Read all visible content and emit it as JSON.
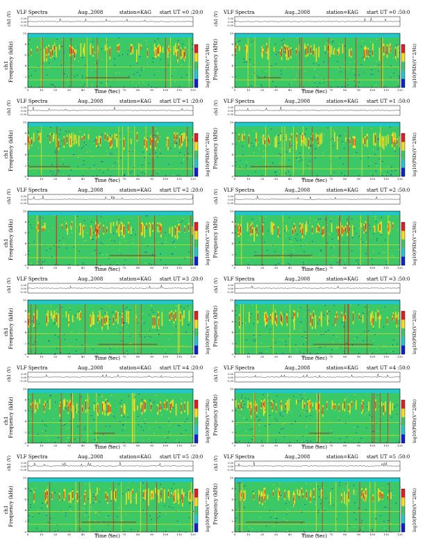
{
  "page_title_left": "VLF Spectra",
  "chart_data": [
    {
      "type": "heatmap",
      "label": "VLF Spectra",
      "date": "Aug.,2008",
      "station": "station=KAG",
      "start": "start UT =0 :20:0",
      "channel_label": "ch1 (V)",
      "ylabel": "ch1\nFrequency (kHz)",
      "xlabel": "Time (sec)",
      "colorbar_label": "log10(PSD)(V^2/Hz)",
      "x_ticks": [
        0,
        10,
        20,
        30,
        40,
        50,
        60,
        70,
        80,
        90,
        100,
        110,
        120
      ],
      "y_ticks": [
        0,
        2,
        4,
        6,
        8,
        10
      ],
      "xlim": [
        0,
        120
      ],
      "ylim": [
        0,
        10
      ]
    },
    {
      "type": "heatmap",
      "label": "VLF Spectra",
      "date": "Aug.,2008",
      "station": "station=KAG",
      "start": "start UT =0 :50:0",
      "channel_label": "ch1 (V)",
      "ylabel": "Frequency (kHz)",
      "xlabel": "Time (sec)",
      "colorbar_label": "log10(PSD)(V^2/Hz)",
      "x_ticks": [
        0,
        10,
        20,
        30,
        40,
        50,
        60,
        70,
        80,
        90,
        100,
        110,
        120
      ],
      "y_ticks": [
        0,
        2,
        4,
        6,
        8,
        10
      ],
      "xlim": [
        0,
        120
      ],
      "ylim": [
        0,
        10
      ]
    },
    {
      "type": "heatmap",
      "label": "VLF Spectra",
      "date": "Aug.,2008",
      "station": "station=KAG",
      "start": "start UT =1 :20:0",
      "channel_label": "ch1 (V)",
      "ylabel": "ch1\nFrequency (kHz)",
      "xlabel": "Time (sec)",
      "colorbar_label": "log10(PSD)(V^2/Hz)",
      "x_ticks": [
        0,
        10,
        20,
        30,
        40,
        50,
        60,
        70,
        80,
        90,
        100,
        110,
        120
      ],
      "y_ticks": [
        0,
        2,
        4,
        6,
        8,
        10
      ],
      "xlim": [
        0,
        120
      ],
      "ylim": [
        0,
        10
      ]
    },
    {
      "type": "heatmap",
      "label": "VLF Spectra",
      "date": "Aug.,2008",
      "station": "station=KAG",
      "start": "start UT =1 :50:0",
      "channel_label": "ch1 (V)",
      "ylabel": "Frequency (kHz)",
      "xlabel": "Time (sec)",
      "colorbar_label": "log10(PSD)(V^2/Hz)",
      "x_ticks": [
        0,
        10,
        20,
        30,
        40,
        50,
        60,
        70,
        80,
        90,
        100,
        110,
        120
      ],
      "y_ticks": [
        0,
        2,
        4,
        6,
        8,
        10
      ],
      "xlim": [
        0,
        120
      ],
      "ylim": [
        0,
        10
      ]
    },
    {
      "type": "heatmap",
      "label": "VLF Spectra",
      "date": "Aug.,2008",
      "station": "station=KAG",
      "start": "start UT =2 :20:0",
      "channel_label": "ch1 (V)",
      "ylabel": "ch1\nFrequency (kHz)",
      "xlabel": "Time (sec)",
      "colorbar_label": "log10(PSD)(V^2/Hz)",
      "x_ticks": [
        0,
        10,
        20,
        30,
        40,
        50,
        60,
        70,
        80,
        90,
        100,
        110,
        120
      ],
      "y_ticks": [
        0,
        2,
        4,
        6,
        8,
        10
      ],
      "xlim": [
        0,
        120
      ],
      "ylim": [
        0,
        10
      ]
    },
    {
      "type": "heatmap",
      "label": "VLF Spectra",
      "date": "Aug.,2008",
      "station": "station=KAG",
      "start": "start UT =2 :50:0",
      "channel_label": "ch1 (V)",
      "ylabel": "Frequency (kHz)",
      "xlabel": "Time (sec)",
      "colorbar_label": "log10(PSD)(V^2/Hz)",
      "x_ticks": [
        0,
        10,
        20,
        30,
        40,
        50,
        60,
        70,
        80,
        90,
        100,
        110,
        120
      ],
      "y_ticks": [
        0,
        2,
        4,
        6,
        8,
        10
      ],
      "xlim": [
        0,
        120
      ],
      "ylim": [
        0,
        10
      ]
    },
    {
      "type": "heatmap",
      "label": "VLF Spectra",
      "date": "Aug.,2008",
      "station": "station=KAG",
      "start": "start UT =3 :20:0",
      "channel_label": "ch1 (V)",
      "ylabel": "ch1\nFrequency (kHz)",
      "xlabel": "Time (sec)",
      "colorbar_label": "log10(PSD)(V^2/Hz)",
      "x_ticks": [
        0,
        10,
        20,
        30,
        40,
        50,
        60,
        70,
        80,
        90,
        100,
        110,
        120
      ],
      "y_ticks": [
        0,
        2,
        4,
        6,
        8,
        10
      ],
      "xlim": [
        0,
        120
      ],
      "ylim": [
        0,
        10
      ]
    },
    {
      "type": "heatmap",
      "label": "VLF Spectra",
      "date": "Aug.,2008",
      "station": "station=KAG",
      "start": "start UT =3 :50:0",
      "channel_label": "ch1 (V)",
      "ylabel": "Frequency (kHz)",
      "xlabel": "Time (sec)",
      "colorbar_label": "log10(PSD)(V^2/Hz)",
      "x_ticks": [
        0,
        10,
        20,
        30,
        40,
        50,
        60,
        70,
        80,
        90,
        100,
        110,
        120
      ],
      "y_ticks": [
        0,
        2,
        4,
        6,
        8,
        10
      ],
      "xlim": [
        0,
        120
      ],
      "ylim": [
        0,
        10
      ]
    },
    {
      "type": "heatmap",
      "label": "VLF Spectra",
      "date": "Aug.,2008",
      "station": "station=KAG",
      "start": "start UT =4 :20:0",
      "channel_label": "ch1 (V)",
      "ylabel": "ch1\nFrequency (kHz)",
      "xlabel": "Time (sec)",
      "colorbar_label": "log10(PSD)(V^2/Hz)",
      "x_ticks": [
        0,
        10,
        20,
        30,
        40,
        50,
        60,
        70,
        80,
        90,
        100,
        110,
        120
      ],
      "y_ticks": [
        0,
        2,
        4,
        6,
        8,
        10
      ],
      "xlim": [
        0,
        120
      ],
      "ylim": [
        0,
        10
      ]
    },
    {
      "type": "heatmap",
      "label": "VLF Spectra",
      "date": "Aug.,2008",
      "station": "station=KAG",
      "start": "start UT =4 :50:0",
      "channel_label": "ch1 (V)",
      "ylabel": "Frequency (kHz)",
      "xlabel": "Time (sec)",
      "colorbar_label": "log10(PSD)(V^2/Hz)",
      "x_ticks": [
        0,
        10,
        20,
        30,
        40,
        50,
        60,
        70,
        80,
        90,
        100,
        110,
        120
      ],
      "y_ticks": [
        0,
        2,
        4,
        6,
        8,
        10
      ],
      "xlim": [
        0,
        120
      ],
      "ylim": [
        0,
        10
      ]
    },
    {
      "type": "heatmap",
      "label": "VLF Spectra",
      "date": "Aug.,2008",
      "station": "station=KAG",
      "start": "start UT =5 :20:0",
      "channel_label": "ch1 (V)",
      "ylabel": "ch1\nFrequency (kHz)",
      "xlabel": "Time (sec)",
      "colorbar_label": "log10(PSD)(V^2/Hz)",
      "x_ticks": [
        0,
        10,
        20,
        30,
        40,
        50,
        60,
        70,
        80,
        90,
        100,
        110,
        120
      ],
      "y_ticks": [
        0,
        2,
        4,
        6,
        8,
        10
      ],
      "xlim": [
        0,
        120
      ],
      "ylim": [
        0,
        10
      ]
    },
    {
      "type": "heatmap",
      "label": "VLF Spectra",
      "date": "Aug.,2008",
      "station": "station=KAG",
      "start": "start UT =5 :50:0",
      "channel_label": "ch1 (V)",
      "ylabel": "Frequency (kHz)",
      "xlabel": "Time (sec)",
      "colorbar_label": "log10(PSD)(V^2/Hz)",
      "x_ticks": [
        0,
        10,
        20,
        30,
        40,
        50,
        60,
        70,
        80,
        90,
        100,
        110,
        120
      ],
      "y_ticks": [
        0,
        2,
        4,
        6,
        8,
        10
      ],
      "xlim": [
        0,
        120
      ],
      "ylim": [
        0,
        10
      ]
    }
  ],
  "channel_ticks": [
    "0.30",
    "0.00",
    "-0.30"
  ],
  "colors": {
    "low": "#1020d0",
    "mid": "#22c8c8",
    "green": "#3cc864",
    "yellow": "#f0e020",
    "red": "#e02020"
  }
}
